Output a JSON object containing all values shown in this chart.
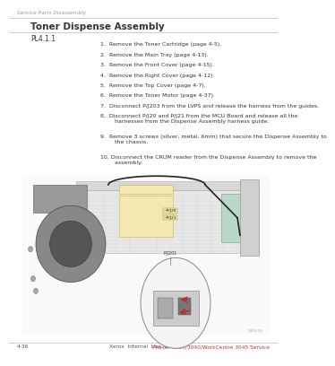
{
  "bg_color": "#ffffff",
  "header_text": "Service Parts Disassembly",
  "title": "Toner Dispense Assembly",
  "pl_label": "PL4.1.1",
  "steps": [
    "1.  Remove the Toner Cartridge (page 4-5).",
    "2.  Remove the Main Tray (page 4-13).",
    "3.  Remove the Front Cover (page 4-15).",
    "4.  Remove the Right Cover (page 4-12).",
    "5.  Remove the Top Cover (page 4-7).",
    "6.  Remove the Toner Motor (page 4-37).",
    "7.  Disconnect P/J203 from the LVPS and release the harness from the guides.",
    "8.  Disconnect P/J20 and P/J21 from the MCU Board and release all the\n        harnesses from the Dispense Assembly harness guide.",
    "9.  Remove 3 screws (silver, metal, 6mm) that secure the Dispense Assembly to\n        the chassis.",
    "10. Disconnect the CRUM reader from the Dispense Assembly to remove the\n        assembly."
  ],
  "footer_left": "4-36",
  "footer_center": "Xerox  Internal  Use  Only",
  "footer_right": "Phaser 3010/3040/WorkCentre 3045 Service",
  "header_fontsize": 4.2,
  "title_fontsize": 7.5,
  "pl_fontsize": 5.5,
  "step_fontsize": 4.5,
  "footer_fontsize": 4.2,
  "text_color": "#333333",
  "rule_color": "#bbbbbb",
  "header_color": "#999999",
  "footer_color_left": "#555555",
  "footer_color_center": "#555555",
  "footer_color_right": "#cc3333"
}
